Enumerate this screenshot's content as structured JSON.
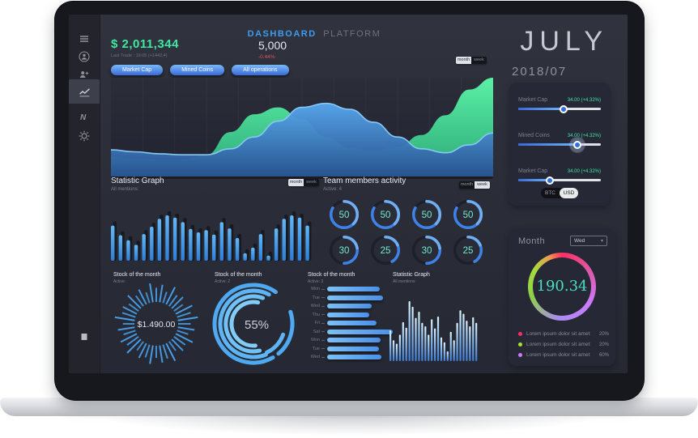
{
  "page_title": {
    "primary": "DASHBOARD",
    "secondary": "PLATFORM"
  },
  "header": {
    "balance": "$ 2,011,344",
    "balance_caption": "Last Trade : 19:05 (+1442,4)",
    "volume": "5,000",
    "volume_change": "-0.44%"
  },
  "filter_buttons": [
    {
      "label": "Market Cap"
    },
    {
      "label": "Mined Coins"
    },
    {
      "label": "All operations"
    }
  ],
  "mini_toggle": {
    "on": "month",
    "off": "week"
  },
  "sections": {
    "statistic_graph": {
      "title": "Statistic Graph",
      "subtitle": "All mentions:"
    },
    "team_activity": {
      "title": "Team members activity",
      "subtitle": "Active: 4"
    },
    "stock_radial": {
      "title": "Stock of the month",
      "subtitle": "Active:"
    },
    "stock_arcs": {
      "title": "Stock of the month",
      "subtitle": "Active: 2"
    },
    "stock_hbars": {
      "title": "Stock of the month",
      "subtitle": "Active: 3"
    },
    "statistic_graph_2": {
      "title": "Statistic Graph",
      "subtitle": "All mentions:"
    }
  },
  "right_panel": {
    "month_name": "JULY",
    "date": "2018/07",
    "sliders": [
      {
        "label": "Market Cap",
        "value": "34.00 (+4.32%)",
        "percent": 55,
        "active": false
      },
      {
        "label": "Mined Coins",
        "value": "34.00 (+4.32%)",
        "percent": 72,
        "active": true
      },
      {
        "label": "Market Cap",
        "value": "34.00 (+4.32%)",
        "percent": 38,
        "active": false
      }
    ],
    "currency_toggle": {
      "left": "BTC",
      "right": "USD",
      "active": "USD"
    }
  },
  "month_card": {
    "title": "Month",
    "dropdown_value": "Wed",
    "dropdown_chevron": "▾",
    "ring_value": "190.34",
    "legend": [
      {
        "color": "#ff2e63",
        "label": "Lorem ipsum dolor sit amet",
        "value": "20%"
      },
      {
        "color": "#a6e22e",
        "label": "Lorem ipsum dolor sit amet",
        "value": "20%"
      },
      {
        "color": "#c77dff",
        "label": "Lorem ipsum dolor sit amet",
        "value": "60%"
      }
    ]
  },
  "sidebar": {
    "icons": [
      "menu",
      "user",
      "user-group",
      "chart",
      "n-logo",
      "gear",
      "archive"
    ]
  },
  "colors": {
    "accent_blue": "#3d9df0",
    "accent_green": "#3fe8a3",
    "accent_red": "#e05555",
    "teal": "#49dfc0"
  },
  "chart_data": [
    {
      "id": "market-area",
      "type": "area",
      "title": "Market overview",
      "ylim": [
        0,
        100
      ],
      "grid": "vertical-faint",
      "series": [
        {
          "name": "Mined Coins",
          "color": "#57eda2",
          "values": [
            20,
            18,
            17,
            17,
            22,
            45,
            63,
            70,
            58,
            40,
            29,
            26,
            30,
            42,
            62,
            88,
            100
          ]
        },
        {
          "name": "Market Cap",
          "color": "#58a9ee",
          "values": [
            27,
            25,
            23,
            22,
            22,
            28,
            40,
            56,
            70,
            74,
            68,
            55,
            40,
            28,
            24,
            32,
            44
          ]
        }
      ]
    },
    {
      "id": "mentions-bars",
      "type": "bar",
      "title": "Statistic Graph - All mentions",
      "color": "#3d9df0",
      "values": [
        62,
        45,
        36,
        28,
        47,
        60,
        74,
        80,
        76,
        68,
        56,
        50,
        54,
        46,
        68,
        57,
        40,
        13,
        23,
        47,
        9,
        57,
        74,
        80,
        76,
        62
      ]
    },
    {
      "id": "team-gauges",
      "type": "gauge",
      "title": "Team members activity",
      "max": 60,
      "values": [
        50,
        50,
        50,
        50,
        30,
        25,
        30,
        25
      ]
    },
    {
      "id": "stock-radial",
      "type": "radial-burst",
      "title": "Stock of the month",
      "center_label": "$1.490.00",
      "values": [
        60,
        80,
        45,
        90,
        55,
        70,
        40,
        85,
        60,
        95,
        50,
        75,
        45,
        88,
        58,
        70,
        42,
        92,
        62,
        78,
        48,
        86,
        55,
        72,
        40,
        90,
        60,
        82,
        50,
        76,
        44,
        94,
        58,
        68,
        46,
        84,
        52,
        74,
        42,
        88
      ]
    },
    {
      "id": "stock-arcs",
      "type": "concentric-arcs",
      "title": "Stock of the month",
      "center_label": "55%",
      "arcs": [
        {
          "r": 48,
          "start": 55,
          "end": 300
        },
        {
          "r": 41,
          "start": 62,
          "end": 292
        },
        {
          "r": 34,
          "start": 70,
          "end": 283
        },
        {
          "r": 27,
          "start": 78,
          "end": 275
        },
        {
          "r": 48,
          "start": -50,
          "end": 18
        },
        {
          "r": 39,
          "start": -65,
          "end": -20
        }
      ]
    },
    {
      "id": "stock-hbars",
      "type": "hbar",
      "title": "Stock of the month",
      "labels": [
        "Mon",
        "Tue",
        "Wed",
        "Thu",
        "Fri",
        "Sat",
        "Mon",
        "Tue",
        "Wed"
      ],
      "values": [
        80,
        85,
        68,
        64,
        75,
        100,
        82,
        79,
        83
      ]
    },
    {
      "id": "mentions-vbars",
      "type": "bar-thin",
      "title": "Statistic Graph - All mentions",
      "values": [
        44,
        30,
        25,
        38,
        56,
        48,
        86,
        78,
        62,
        71,
        55,
        50,
        38,
        60,
        47,
        64,
        34,
        27,
        14,
        42,
        30,
        55,
        73,
        68,
        58,
        50,
        63,
        55
      ]
    }
  ]
}
